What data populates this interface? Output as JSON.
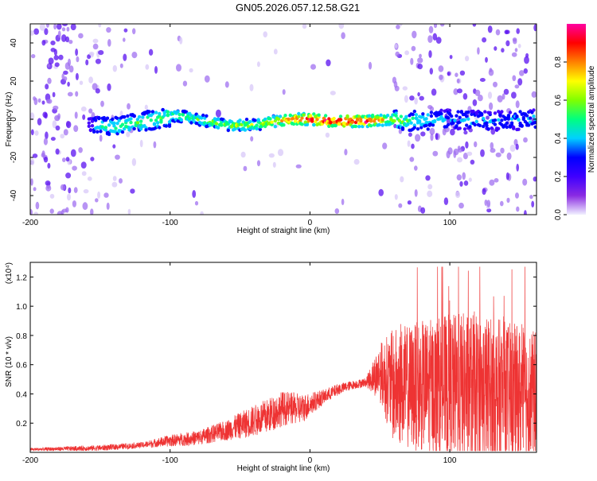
{
  "title": "GN05.2026.057.12.58.G21",
  "chart_data": [
    {
      "type": "heatmap",
      "xlabel": "Height of straight line (km)",
      "ylabel": "Frequency (Hz)",
      "xlim": [
        -200,
        162
      ],
      "ylim": [
        -50,
        50
      ],
      "x_ticks": [
        -200,
        -100,
        0,
        100
      ],
      "y_ticks": [
        -40,
        -20,
        0,
        20,
        40
      ],
      "colorbar": {
        "label": "Normalized spectral amplitude",
        "range": [
          0,
          1
        ],
        "ticks": [
          "0.0",
          "0.2",
          "0.4",
          "0.6",
          "0.8"
        ],
        "ticks_values": [
          0.0,
          0.2,
          0.4,
          0.6,
          0.8
        ],
        "colors": [
          "#f0f0ff",
          "#8a2be2",
          "#3f00ff",
          "#0000ff",
          "#00d0ff",
          "#00ff80",
          "#80ff00",
          "#ffff00",
          "#ff8000",
          "#ff0000",
          "#ff00a0"
        ]
      },
      "ridge": [
        {
          "x": -155,
          "y": -3,
          "amp": 0.35
        },
        {
          "x": -140,
          "y": -4,
          "amp": 0.4
        },
        {
          "x": -125,
          "y": -2,
          "amp": 0.45
        },
        {
          "x": -110,
          "y": 0,
          "amp": 0.45
        },
        {
          "x": -95,
          "y": 2,
          "amp": 0.5
        },
        {
          "x": -80,
          "y": 0,
          "amp": 0.45
        },
        {
          "x": -60,
          "y": -3,
          "amp": 0.5
        },
        {
          "x": -40,
          "y": -3,
          "amp": 0.55
        },
        {
          "x": -25,
          "y": -1,
          "amp": 0.6
        },
        {
          "x": -10,
          "y": 0,
          "amp": 0.8
        },
        {
          "x": 0,
          "y": 0,
          "amp": 0.85
        },
        {
          "x": 20,
          "y": -1,
          "amp": 0.95
        },
        {
          "x": 40,
          "y": -1,
          "amp": 0.9
        },
        {
          "x": 55,
          "y": 0,
          "amp": 0.6
        },
        {
          "x": 70,
          "y": -1,
          "amp": 0.45
        },
        {
          "x": 100,
          "y": 0,
          "amp": 0.3
        },
        {
          "x": 130,
          "y": -1,
          "amp": 0.3
        },
        {
          "x": 160,
          "y": 0,
          "amp": 0.3
        }
      ]
    },
    {
      "type": "line",
      "xlabel": "Height of straight line (km)",
      "ylabel": "SNR (10 * v/v)",
      "y_multiplier": "(x10⁴)",
      "xlim": [
        -200,
        162
      ],
      "ylim": [
        0,
        1.3
      ],
      "x_ticks": [
        -200,
        -100,
        0,
        100
      ],
      "y_ticks": [
        0.2,
        0.4,
        0.6,
        0.8,
        1.0,
        1.2
      ],
      "y_tick_labels": [
        "0.2",
        "0.4",
        "0.6",
        "0.8",
        "1.0",
        "1.2"
      ],
      "color": "#ee3333",
      "envelope": {
        "x": [
          -200,
          -150,
          -120,
          -100,
          -80,
          -60,
          -45,
          -30,
          -20,
          -5,
          0,
          10,
          20,
          30,
          40,
          50,
          55,
          60,
          80,
          100,
          120,
          140,
          162
        ],
        "mean": [
          0.02,
          0.03,
          0.05,
          0.08,
          0.1,
          0.15,
          0.2,
          0.25,
          0.3,
          0.3,
          0.33,
          0.38,
          0.43,
          0.46,
          0.48,
          0.55,
          0.5,
          0.45,
          0.45,
          0.45,
          0.42,
          0.4,
          0.38
        ],
        "amp": [
          0.01,
          0.02,
          0.02,
          0.04,
          0.05,
          0.07,
          0.1,
          0.12,
          0.12,
          0.1,
          0.08,
          0.05,
          0.04,
          0.03,
          0.03,
          0.2,
          0.3,
          0.4,
          0.45,
          0.5,
          0.55,
          0.5,
          0.45
        ]
      }
    }
  ]
}
